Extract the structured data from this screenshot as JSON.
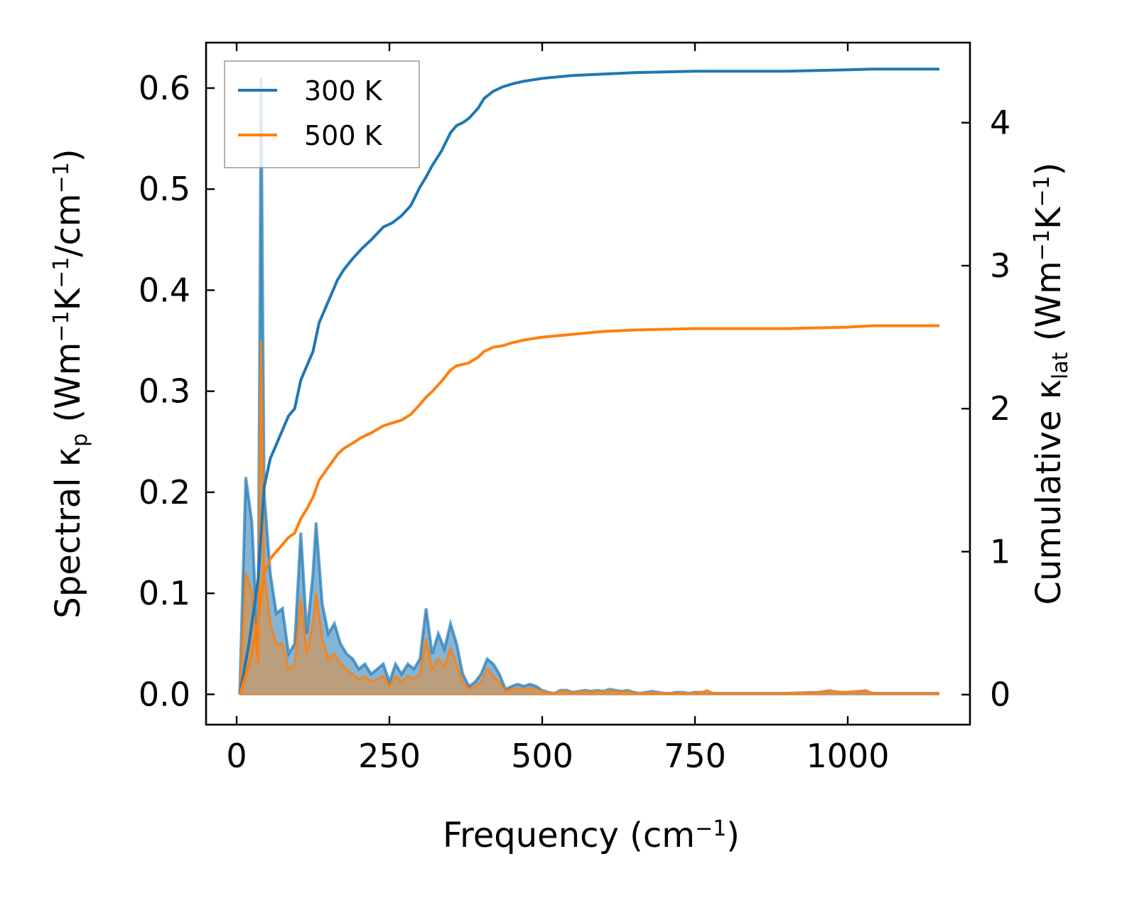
{
  "chart_data": {
    "type": "line",
    "xlabel": "Frequency (cm⁻¹)",
    "xlabel_parts": {
      "base": "Frequency (cm",
      "sup": "−1",
      "tail": ")"
    },
    "ylabel_left": "Spectral κp (Wm⁻¹K⁻¹/cm⁻¹)",
    "ylabel_left_parts": {
      "pre": "Spectral κ",
      "sub": "p",
      "mid1": " (Wm",
      "sup1": "−1",
      "mid2": "K",
      "sup2": "−1",
      "mid3": "/cm",
      "sup3": "−1",
      "tail": ")"
    },
    "ylabel_right": "Cumulative κlat (Wm⁻¹K⁻¹)",
    "ylabel_right_parts": {
      "pre": "Cumulative κ",
      "sub": "lat",
      "mid1": " (Wm",
      "sup1": "−1",
      "mid2": "K",
      "sup2": "−1",
      "tail": ")"
    },
    "xlim": [
      -50,
      1200
    ],
    "ylim_left": [
      -0.03,
      0.645
    ],
    "ylim_right": [
      -0.21,
      4.56
    ],
    "x_ticks": [
      0,
      250,
      500,
      750,
      1000
    ],
    "x_tick_labels": [
      "0",
      "250",
      "500",
      "750",
      "1000"
    ],
    "y_left_ticks": [
      0.0,
      0.1,
      0.2,
      0.3,
      0.4,
      0.5,
      0.6
    ],
    "y_left_tick_labels": [
      "0.0",
      "0.1",
      "0.2",
      "0.3",
      "0.4",
      "0.5",
      "0.6"
    ],
    "y_right_ticks": [
      0,
      1,
      2,
      3,
      4
    ],
    "y_right_tick_labels": [
      "0",
      "1",
      "2",
      "3",
      "4"
    ],
    "legend": {
      "position": "top-left",
      "entries": [
        "300 K",
        "500 K"
      ]
    },
    "colors": {
      "300 K": "#1f77b4",
      "500 K": "#ff7f0e",
      "fill_500": "#c49a6c"
    },
    "series": [
      {
        "name": "300 K",
        "axis": "left",
        "kind": "spectral",
        "x": [
          5,
          15,
          25,
          35,
          40,
          45,
          55,
          65,
          75,
          85,
          95,
          105,
          115,
          125,
          130,
          140,
          150,
          160,
          170,
          180,
          190,
          200,
          210,
          220,
          230,
          240,
          250,
          260,
          270,
          280,
          290,
          300,
          310,
          320,
          330,
          340,
          350,
          360,
          370,
          380,
          390,
          400,
          410,
          420,
          430,
          440,
          450,
          460,
          470,
          480,
          490,
          500,
          510,
          520,
          530,
          540,
          550,
          560,
          570,
          580,
          590,
          600,
          610,
          620,
          630,
          640,
          650,
          660,
          670,
          680,
          690,
          700,
          710,
          720,
          730,
          740,
          750,
          760,
          770,
          780,
          790,
          800,
          850,
          900,
          950,
          970,
          990,
          1010,
          1030,
          1040,
          1060,
          1080,
          1100,
          1150
        ],
        "values": [
          0.0,
          0.215,
          0.17,
          0.04,
          0.61,
          0.2,
          0.12,
          0.08,
          0.085,
          0.04,
          0.05,
          0.16,
          0.06,
          0.12,
          0.17,
          0.09,
          0.06,
          0.07,
          0.05,
          0.04,
          0.035,
          0.025,
          0.03,
          0.02,
          0.025,
          0.03,
          0.012,
          0.03,
          0.02,
          0.03,
          0.025,
          0.035,
          0.085,
          0.04,
          0.06,
          0.045,
          0.07,
          0.05,
          0.02,
          0.008,
          0.012,
          0.02,
          0.035,
          0.03,
          0.02,
          0.005,
          0.008,
          0.01,
          0.008,
          0.01,
          0.008,
          0.004,
          0.002,
          0.001,
          0.004,
          0.004,
          0.002,
          0.003,
          0.004,
          0.003,
          0.004,
          0.003,
          0.005,
          0.004,
          0.003,
          0.004,
          0.002,
          0.001,
          0.002,
          0.003,
          0.002,
          0.001,
          0.001,
          0.002,
          0.002,
          0.001,
          0.002,
          0.002,
          0.002,
          0.001,
          0.001,
          0.001,
          0.001,
          0.001,
          0.002,
          0.003,
          0.002,
          0.002,
          0.003,
          0.001,
          0.001,
          0.001,
          0.001,
          0.001
        ]
      },
      {
        "name": "500 K",
        "axis": "left",
        "kind": "spectral",
        "x": [
          5,
          15,
          25,
          35,
          40,
          45,
          55,
          65,
          75,
          85,
          95,
          105,
          115,
          125,
          130,
          140,
          150,
          160,
          170,
          180,
          190,
          200,
          210,
          220,
          230,
          240,
          250,
          260,
          270,
          280,
          290,
          300,
          310,
          320,
          330,
          340,
          350,
          360,
          370,
          380,
          390,
          400,
          410,
          420,
          430,
          440,
          450,
          460,
          470,
          480,
          490,
          500,
          510,
          520,
          530,
          540,
          550,
          560,
          570,
          580,
          590,
          600,
          610,
          620,
          630,
          640,
          650,
          660,
          670,
          680,
          690,
          700,
          710,
          720,
          730,
          740,
          750,
          760,
          770,
          780,
          790,
          800,
          850,
          900,
          950,
          970,
          990,
          1010,
          1030,
          1040,
          1060,
          1080,
          1100,
          1150
        ],
        "values": [
          0.0,
          0.12,
          0.1,
          0.03,
          0.35,
          0.12,
          0.07,
          0.05,
          0.05,
          0.025,
          0.03,
          0.095,
          0.04,
          0.07,
          0.1,
          0.055,
          0.035,
          0.04,
          0.03,
          0.025,
          0.02,
          0.015,
          0.018,
          0.012,
          0.015,
          0.018,
          0.008,
          0.018,
          0.012,
          0.018,
          0.015,
          0.02,
          0.055,
          0.025,
          0.035,
          0.028,
          0.045,
          0.03,
          0.012,
          0.005,
          0.008,
          0.012,
          0.025,
          0.018,
          0.012,
          0.003,
          0.005,
          0.006,
          0.005,
          0.006,
          0.005,
          0.003,
          0.001,
          0.001,
          0.003,
          0.003,
          0.001,
          0.002,
          0.003,
          0.002,
          0.003,
          0.002,
          0.004,
          0.003,
          0.002,
          0.003,
          0.001,
          0.001,
          0.001,
          0.002,
          0.001,
          0.001,
          0.001,
          0.001,
          0.001,
          0.001,
          0.001,
          0.002,
          0.004,
          0.001,
          0.001,
          0.001,
          0.001,
          0.001,
          0.002,
          0.004,
          0.002,
          0.003,
          0.004,
          0.001,
          0.001,
          0.001,
          0.001,
          0.001
        ]
      },
      {
        "name": "300 K",
        "axis": "right",
        "kind": "cumulative",
        "x": [
          5,
          20,
          35,
          45,
          55,
          65,
          75,
          85,
          95,
          105,
          115,
          125,
          135,
          145,
          155,
          165,
          175,
          190,
          205,
          220,
          240,
          255,
          270,
          285,
          300,
          310,
          320,
          335,
          350,
          360,
          370,
          380,
          395,
          405,
          420,
          435,
          450,
          470,
          500,
          525,
          550,
          600,
          650,
          700,
          750,
          780,
          850,
          900,
          950,
          1000,
          1040,
          1100,
          1150
        ],
        "values": [
          0.0,
          0.35,
          0.8,
          1.45,
          1.65,
          1.75,
          1.85,
          1.95,
          2.0,
          2.2,
          2.3,
          2.4,
          2.6,
          2.7,
          2.8,
          2.9,
          2.97,
          3.05,
          3.12,
          3.18,
          3.27,
          3.3,
          3.35,
          3.42,
          3.55,
          3.62,
          3.7,
          3.8,
          3.93,
          3.98,
          4.0,
          4.03,
          4.1,
          4.17,
          4.22,
          4.25,
          4.27,
          4.29,
          4.31,
          4.32,
          4.33,
          4.34,
          4.35,
          4.355,
          4.36,
          4.36,
          4.36,
          4.36,
          4.365,
          4.37,
          4.375,
          4.375,
          4.375
        ]
      },
      {
        "name": "500 K",
        "axis": "right",
        "kind": "cumulative",
        "x": [
          5,
          20,
          35,
          45,
          55,
          65,
          75,
          85,
          95,
          105,
          115,
          125,
          135,
          145,
          155,
          165,
          175,
          190,
          205,
          220,
          240,
          255,
          270,
          285,
          300,
          310,
          320,
          335,
          350,
          360,
          370,
          380,
          395,
          405,
          420,
          435,
          450,
          470,
          500,
          525,
          550,
          600,
          650,
          700,
          750,
          780,
          850,
          900,
          950,
          1000,
          1040,
          1100,
          1150
        ],
        "values": [
          0.0,
          0.2,
          0.5,
          0.85,
          0.95,
          1.0,
          1.05,
          1.1,
          1.13,
          1.23,
          1.3,
          1.38,
          1.5,
          1.56,
          1.62,
          1.68,
          1.72,
          1.76,
          1.8,
          1.83,
          1.88,
          1.9,
          1.92,
          1.96,
          2.03,
          2.08,
          2.12,
          2.19,
          2.27,
          2.3,
          2.31,
          2.32,
          2.36,
          2.4,
          2.43,
          2.44,
          2.46,
          2.48,
          2.5,
          2.51,
          2.52,
          2.54,
          2.55,
          2.555,
          2.56,
          2.56,
          2.56,
          2.56,
          2.565,
          2.57,
          2.58,
          2.58,
          2.58
        ]
      }
    ]
  }
}
